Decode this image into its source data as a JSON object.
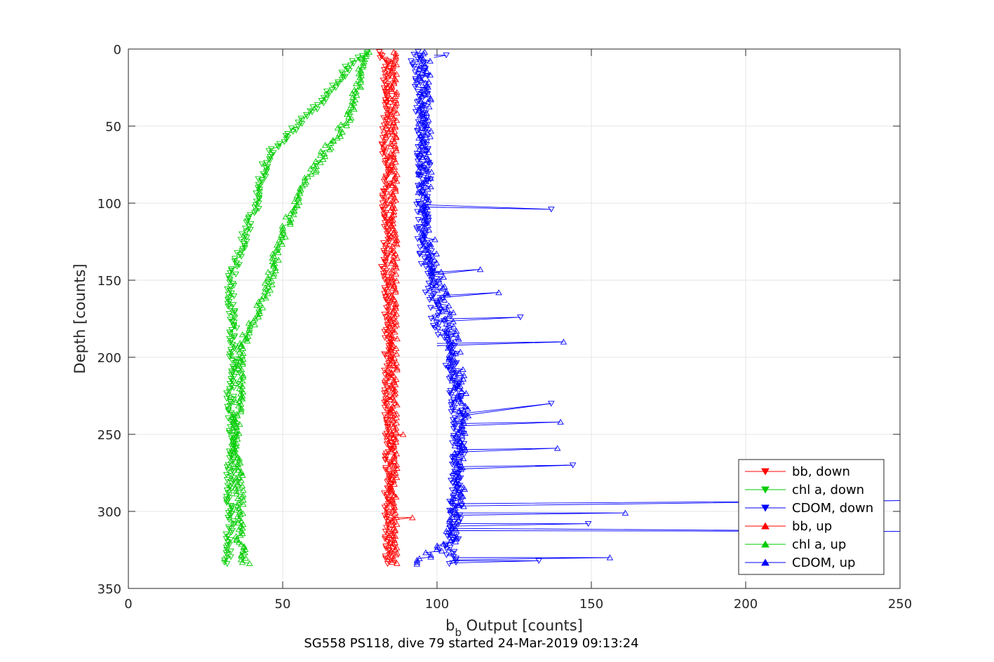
{
  "chart_data": {
    "type": "scatter",
    "caption": "SG558 PS118, dive 79 started 24-Mar-2019 09:13:24",
    "xlabel_main": "b",
    "xlabel_sub": "b",
    "xlabel_rest": " Output [counts]",
    "ylabel": "Depth [counts]",
    "xlim": [
      0,
      250
    ],
    "ylim": [
      0,
      350
    ],
    "y_reversed": true,
    "grid": true,
    "legend_position": "bottom-right",
    "x_ticks": [
      "0",
      "50",
      "100",
      "150",
      "200",
      "250"
    ],
    "y_ticks": [
      "0",
      "50",
      "100",
      "150",
      "200",
      "250",
      "300",
      "350"
    ],
    "series": [
      {
        "name": "bb, down",
        "color": "#ff0000",
        "marker": "triangle-down",
        "points": [
          [
            81,
            2
          ],
          [
            84,
            10
          ],
          [
            83,
            25
          ],
          [
            84,
            40
          ],
          [
            83,
            60
          ],
          [
            84,
            80
          ],
          [
            83,
            100
          ],
          [
            84,
            120
          ],
          [
            83,
            140
          ],
          [
            84,
            160
          ],
          [
            84,
            180
          ],
          [
            84,
            200
          ],
          [
            84,
            220
          ],
          [
            84,
            240
          ],
          [
            84,
            260
          ],
          [
            84,
            280
          ],
          [
            84,
            300
          ],
          [
            84,
            320
          ],
          [
            84,
            334
          ]
        ]
      },
      {
        "name": "chl a, down",
        "color": "#00cc00",
        "marker": "triangle-down",
        "points": [
          [
            78,
            2
          ],
          [
            73,
            8
          ],
          [
            70,
            15
          ],
          [
            66,
            25
          ],
          [
            62,
            35
          ],
          [
            57,
            45
          ],
          [
            52,
            55
          ],
          [
            47,
            65
          ],
          [
            44,
            75
          ],
          [
            43,
            90
          ],
          [
            42,
            100
          ],
          [
            40,
            110
          ],
          [
            38,
            120
          ],
          [
            37,
            130
          ],
          [
            35,
            140
          ],
          [
            33,
            150
          ],
          [
            33,
            165
          ],
          [
            34,
            180
          ],
          [
            34,
            200
          ],
          [
            33,
            215
          ],
          [
            33,
            230
          ],
          [
            34,
            250
          ],
          [
            33,
            270
          ],
          [
            33,
            290
          ],
          [
            33,
            310
          ],
          [
            32,
            320
          ],
          [
            32,
            334
          ]
        ]
      },
      {
        "name": "CDOM, down",
        "color": "#0000ff",
        "marker": "triangle-down",
        "points": [
          [
            92,
            2
          ],
          [
            95,
            15
          ],
          [
            95,
            30
          ],
          [
            95,
            45
          ],
          [
            95,
            60
          ],
          [
            96,
            75
          ],
          [
            96,
            90
          ],
          [
            95,
            100
          ],
          [
            95,
            115
          ],
          [
            96,
            130
          ],
          [
            97,
            145
          ],
          [
            98,
            160
          ],
          [
            100,
            175
          ],
          [
            103,
            190
          ],
          [
            105,
            200
          ],
          [
            105,
            215
          ],
          [
            106,
            230
          ],
          [
            107,
            245
          ],
          [
            107,
            260
          ],
          [
            106,
            275
          ],
          [
            106,
            290
          ],
          [
            106,
            305
          ],
          [
            105,
            320
          ],
          [
            104,
            334
          ]
        ]
      },
      {
        "name": "bb, up",
        "color": "#ff0000",
        "marker": "triangle-up",
        "points": [
          [
            86,
            334
          ],
          [
            86,
            320
          ],
          [
            86,
            300
          ],
          [
            86,
            280
          ],
          [
            86,
            260
          ],
          [
            86,
            240
          ],
          [
            86,
            220
          ],
          [
            86,
            200
          ],
          [
            86,
            180
          ],
          [
            86,
            160
          ],
          [
            86,
            140
          ],
          [
            86,
            120
          ],
          [
            86,
            100
          ],
          [
            86,
            80
          ],
          [
            86,
            60
          ],
          [
            86,
            40
          ],
          [
            86,
            20
          ],
          [
            86,
            2
          ]
        ]
      },
      {
        "name": "chl a, up",
        "color": "#00cc00",
        "marker": "triangle-up",
        "points": [
          [
            38,
            334
          ],
          [
            36,
            320
          ],
          [
            36,
            300
          ],
          [
            36,
            280
          ],
          [
            35,
            260
          ],
          [
            35,
            240
          ],
          [
            36,
            220
          ],
          [
            36,
            200
          ],
          [
            38,
            185
          ],
          [
            41,
            175
          ],
          [
            43,
            165
          ],
          [
            45,
            155
          ],
          [
            47,
            140
          ],
          [
            49,
            125
          ],
          [
            52,
            110
          ],
          [
            55,
            95
          ],
          [
            58,
            85
          ],
          [
            61,
            75
          ],
          [
            64,
            65
          ],
          [
            68,
            55
          ],
          [
            71,
            45
          ],
          [
            73,
            35
          ],
          [
            74,
            25
          ],
          [
            75,
            15
          ],
          [
            76,
            8
          ],
          [
            78,
            2
          ]
        ]
      },
      {
        "name": "CDOM, up",
        "color": "#0000ff",
        "marker": "triangle-up",
        "points": [
          [
            93,
            334
          ],
          [
            104,
            320
          ],
          [
            106,
            305
          ],
          [
            107,
            290
          ],
          [
            107,
            275
          ],
          [
            107,
            260
          ],
          [
            108,
            245
          ],
          [
            108,
            230
          ],
          [
            107,
            215
          ],
          [
            106,
            200
          ],
          [
            105,
            185
          ],
          [
            103,
            170
          ],
          [
            101,
            155
          ],
          [
            99,
            140
          ],
          [
            97,
            120
          ],
          [
            96,
            100
          ],
          [
            96,
            80
          ],
          [
            96,
            60
          ],
          [
            96,
            40
          ],
          [
            96,
            20
          ],
          [
            96,
            2
          ]
        ]
      }
    ],
    "spikes": [
      {
        "series": "CDOM, down",
        "base": [
          95,
          101
        ],
        "tip": [
          137,
          104
        ]
      },
      {
        "series": "CDOM, up",
        "base": [
          100,
          191
        ],
        "tip": [
          141,
          190
        ]
      },
      {
        "series": "CDOM, down",
        "base": [
          104,
          175
        ],
        "tip": [
          127,
          174
        ]
      },
      {
        "series": "CDOM, down",
        "base": [
          106,
          237
        ],
        "tip": [
          137,
          230
        ]
      },
      {
        "series": "CDOM, up",
        "base": [
          107,
          243
        ],
        "tip": [
          140,
          242
        ]
      },
      {
        "series": "CDOM, up",
        "base": [
          107,
          260
        ],
        "tip": [
          139,
          259
        ]
      },
      {
        "series": "CDOM, down",
        "base": [
          107,
          271
        ],
        "tip": [
          144,
          270
        ]
      },
      {
        "series": "CDOM, down",
        "base": [
          106,
          295
        ],
        "tip": [
          250,
          293
        ]
      },
      {
        "series": "CDOM, up",
        "base": [
          106,
          301
        ],
        "tip": [
          161,
          301
        ]
      },
      {
        "series": "CDOM, down",
        "base": [
          106,
          308
        ],
        "tip": [
          149,
          308
        ]
      },
      {
        "series": "CDOM, down",
        "base": [
          105,
          311
        ],
        "tip": [
          250,
          313
        ]
      },
      {
        "series": "CDOM, up",
        "base": [
          105,
          330
        ],
        "tip": [
          156,
          330
        ]
      },
      {
        "series": "CDOM, down",
        "base": [
          104,
          332
        ],
        "tip": [
          133,
          332
        ]
      },
      {
        "series": "CDOM, down",
        "base": [
          99,
          4
        ],
        "tip": [
          103,
          4
        ]
      },
      {
        "series": "CDOM, up",
        "base": [
          98,
          145
        ],
        "tip": [
          114,
          143
        ]
      },
      {
        "series": "CDOM, up",
        "base": [
          100,
          160
        ],
        "tip": [
          120,
          158
        ]
      },
      {
        "series": "bb, up",
        "base": [
          85,
          251
        ],
        "tip": [
          89,
          250
        ]
      },
      {
        "series": "bb, up",
        "base": [
          86,
          304
        ],
        "tip": [
          92,
          304
        ]
      }
    ]
  }
}
